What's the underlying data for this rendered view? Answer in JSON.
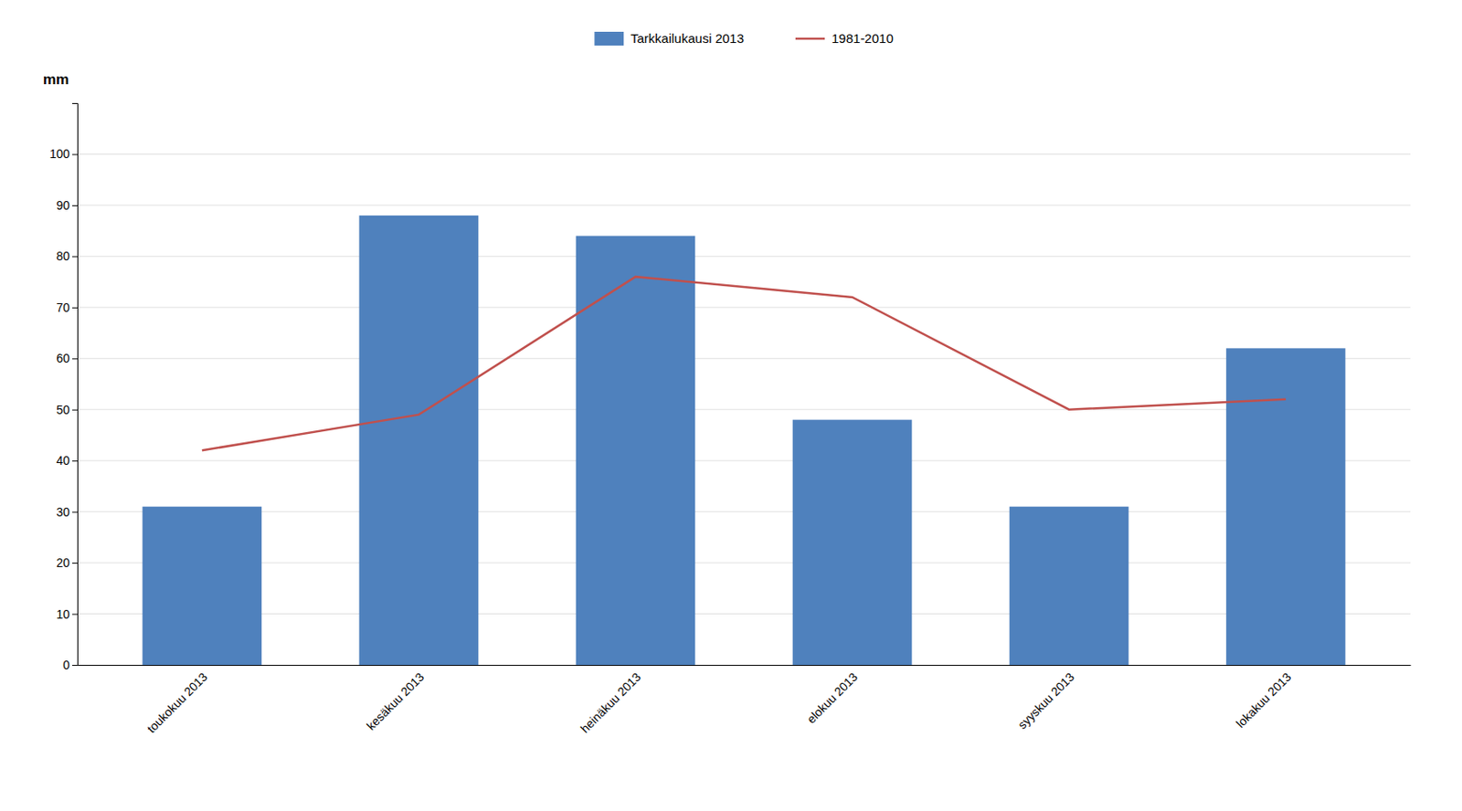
{
  "chart_data": {
    "type": "bar",
    "categories": [
      "toukokuu 2013",
      "kesäkuu 2013",
      "heinäkuu 2013",
      "elokuu 2013",
      "syyskuu 2013",
      "lokakuu 2013"
    ],
    "series": [
      {
        "name": "Tarkkailukausi 2013",
        "type": "bar",
        "color": "#4f81bd",
        "values": [
          31,
          88,
          84,
          48,
          31,
          62
        ]
      },
      {
        "name": "1981-2010",
        "type": "line",
        "color": "#c0504d",
        "values": [
          42,
          49,
          76,
          72,
          50,
          52
        ]
      }
    ],
    "ylabel": "mm",
    "ylim": [
      0,
      110
    ],
    "yticks": [
      0,
      10,
      20,
      30,
      40,
      50,
      60,
      70,
      80,
      90,
      100
    ],
    "grid": true,
    "legend": "top"
  }
}
